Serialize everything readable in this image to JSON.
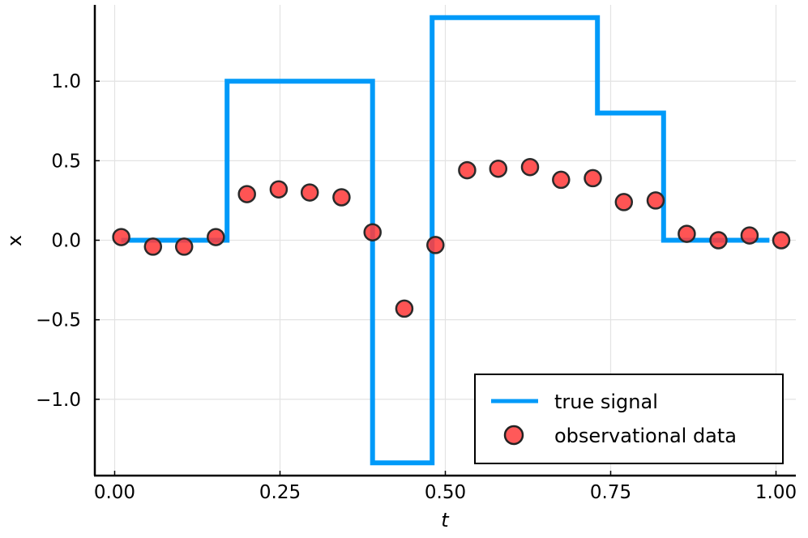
{
  "chart_data": {
    "type": "line",
    "xlabel": "t",
    "ylabel": "x",
    "xlim": [
      -0.03,
      1.03
    ],
    "ylim": [
      -1.48,
      1.48
    ],
    "x_ticks": [
      {
        "value": 0.0,
        "label": "0.00"
      },
      {
        "value": 0.25,
        "label": "0.25"
      },
      {
        "value": 0.5,
        "label": "0.50"
      },
      {
        "value": 0.75,
        "label": "0.75"
      },
      {
        "value": 1.0,
        "label": "1.00"
      }
    ],
    "y_ticks": [
      {
        "value": 1.0,
        "label": "1.0"
      },
      {
        "value": 0.5,
        "label": "0.5"
      },
      {
        "value": 0.0,
        "label": "0.0"
      },
      {
        "value": -0.5,
        "label": "−0.5"
      },
      {
        "value": -1.0,
        "label": "−1.0"
      }
    ],
    "grid": true,
    "legend_position": "bottom-right",
    "series": [
      {
        "name": "true signal",
        "kind": "line",
        "color": "#009AF9",
        "x": [
          0.01,
          0.17,
          0.17,
          0.39,
          0.39,
          0.48,
          0.48,
          0.73,
          0.73,
          0.83,
          0.83,
          0.99
        ],
        "y": [
          0.0,
          0.0,
          1.0,
          1.0,
          -1.4,
          -1.4,
          1.4,
          1.4,
          0.8,
          0.8,
          0.0,
          0.0
        ]
      },
      {
        "name": "observational data",
        "kind": "scatter",
        "color": "#FF3C3C",
        "x": [
          0.01,
          0.058,
          0.105,
          0.153,
          0.2,
          0.248,
          0.295,
          0.343,
          0.39,
          0.438,
          0.485,
          0.533,
          0.58,
          0.628,
          0.675,
          0.723,
          0.77,
          0.818,
          0.865,
          0.913,
          0.96,
          1.008
        ],
        "y": [
          0.02,
          -0.04,
          -0.04,
          0.02,
          0.29,
          0.32,
          0.3,
          0.27,
          0.05,
          -0.43,
          -0.03,
          0.44,
          0.45,
          0.46,
          0.38,
          0.39,
          0.24,
          0.25,
          0.04,
          0.0,
          0.03,
          0.0
        ]
      }
    ]
  }
}
